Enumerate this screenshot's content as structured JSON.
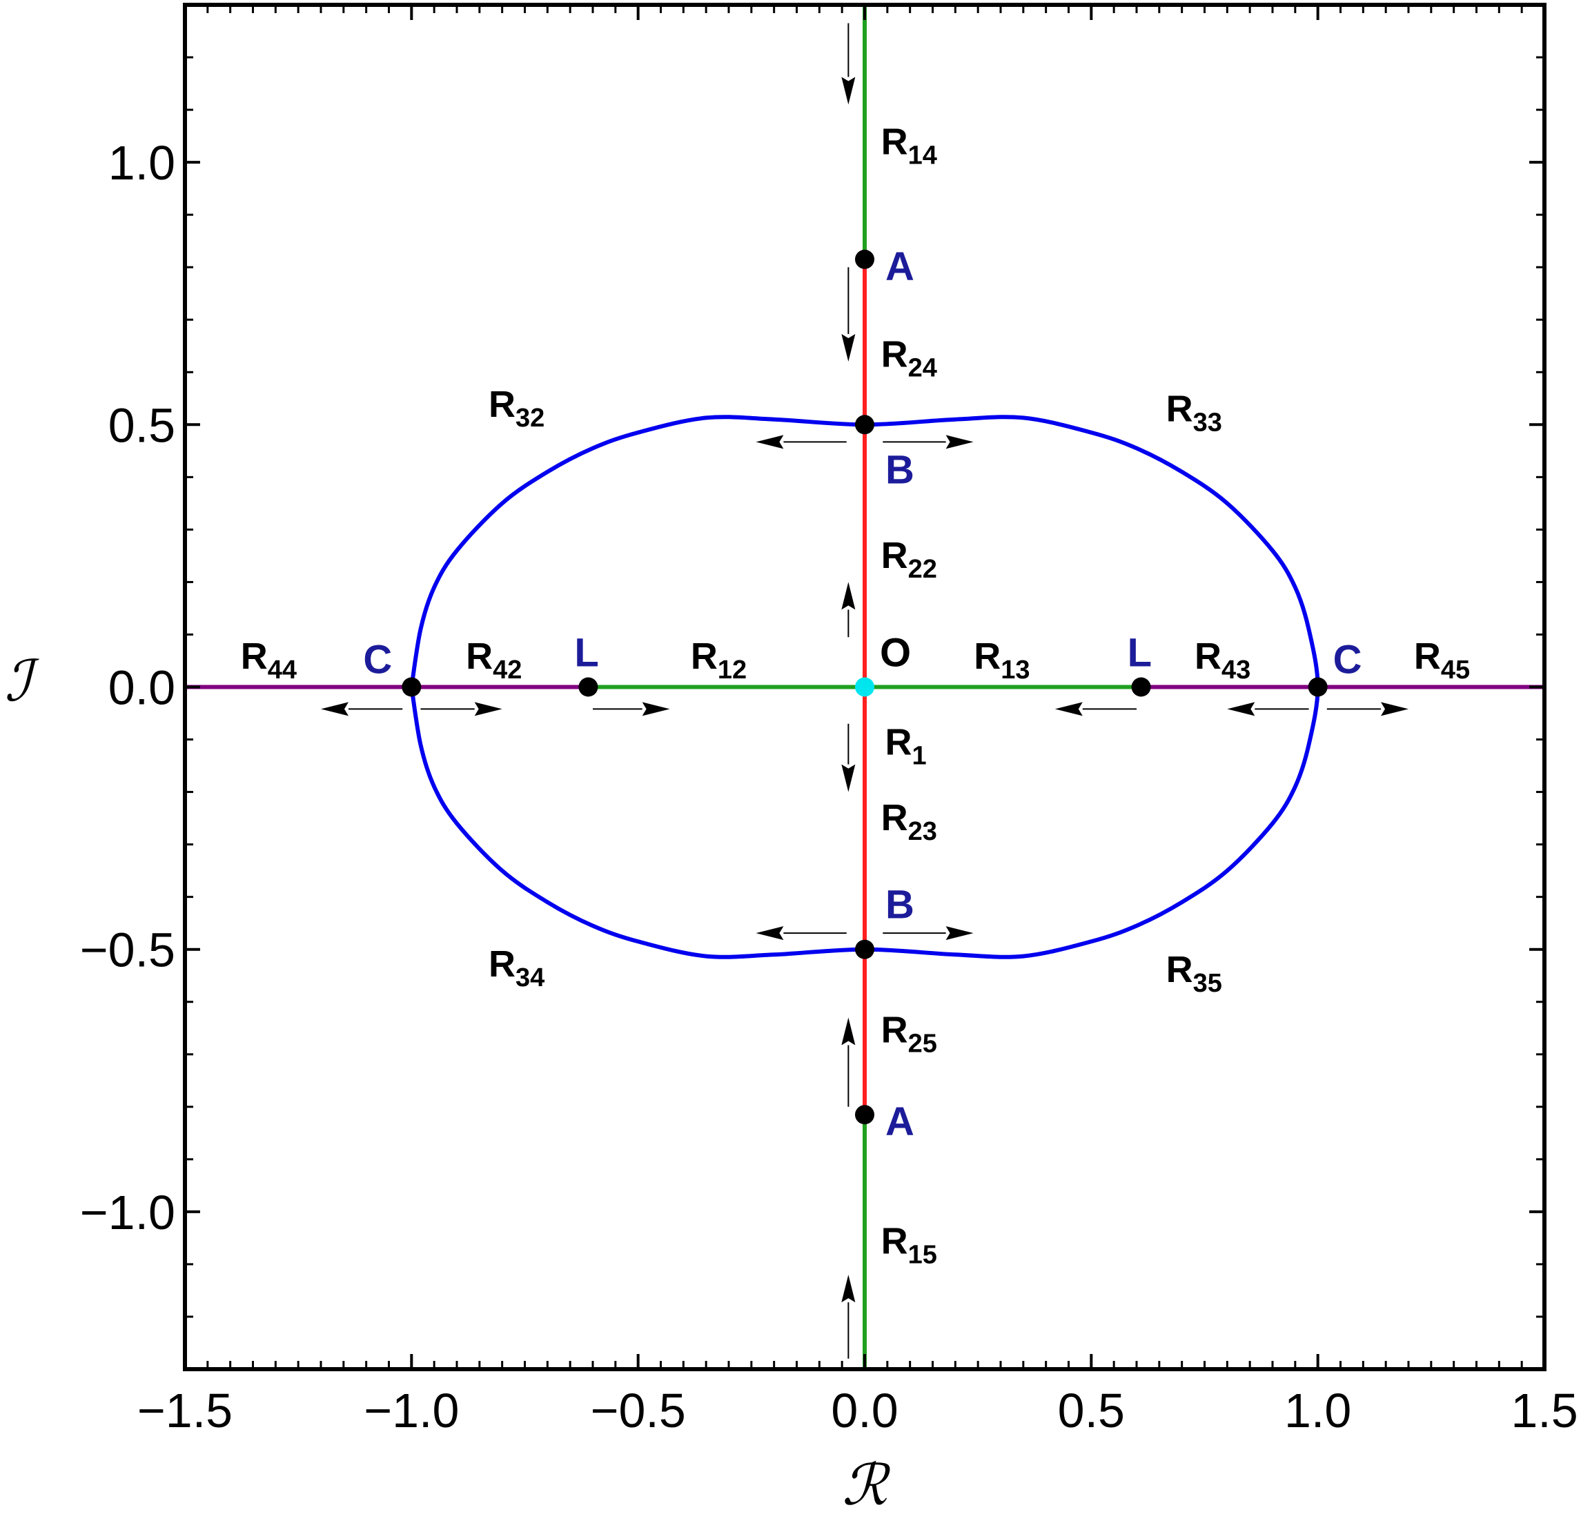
{
  "chart_data": {
    "type": "line",
    "xlabel": "ℛ",
    "ylabel": "ℐ",
    "xlim": [
      -1.5,
      1.5
    ],
    "ylim": [
      -1.3,
      1.3
    ],
    "xticks": [
      {
        "value": -1.5,
        "label": "−1.5"
      },
      {
        "value": -1,
        "label": "−1.0"
      },
      {
        "value": -0.5,
        "label": "−0.5"
      },
      {
        "value": 0,
        "label": "0.0"
      },
      0.5,
      {
        "value": 1,
        "label": "1.0"
      },
      1.5
    ],
    "yticks": [
      {
        "value": -1,
        "label": "−1.0"
      },
      {
        "value": -0.5,
        "label": "−0.5"
      },
      {
        "value": 0,
        "label": "0.0"
      },
      0.5,
      {
        "value": 1,
        "label": "1.0"
      }
    ],
    "series": [
      {
        "color": "#800080",
        "x": [
          -1.5,
          -0.61
        ],
        "values": [
          0,
          0
        ]
      },
      {
        "color": "#1fa01f",
        "x": [
          -0.61,
          0.61
        ],
        "values": [
          0,
          0
        ]
      },
      {
        "color": "#800080",
        "x": [
          0.61,
          1.5
        ],
        "values": [
          0,
          0
        ]
      },
      {
        "color": "#0000ee",
        "x": [
          -1,
          -0.98,
          -0.95,
          -0.9,
          -0.8,
          -0.7,
          -0.6,
          -0.5,
          -0.35,
          -0.2,
          0,
          0.2,
          0.35,
          0.5,
          0.6,
          0.7,
          0.8,
          0.9,
          0.95,
          0.98,
          1,
          0.98,
          0.95,
          0.9,
          0.8,
          0.7,
          0.6,
          0.5,
          0.35,
          0.2,
          0,
          -0.2,
          -0.35,
          -0.5,
          -0.6,
          -0.7,
          -0.8,
          -0.9,
          -0.95,
          -0.98,
          -1
        ],
        "values": [
          0,
          0.11,
          0.19,
          0.26,
          0.35,
          0.41,
          0.455,
          0.485,
          0.513,
          0.51,
          0.5,
          0.51,
          0.513,
          0.485,
          0.455,
          0.41,
          0.35,
          0.26,
          0.19,
          0.11,
          0,
          -0.11,
          -0.19,
          -0.26,
          -0.35,
          -0.41,
          -0.455,
          -0.485,
          -0.513,
          -0.51,
          -0.5,
          -0.51,
          -0.513,
          -0.485,
          -0.455,
          -0.41,
          -0.35,
          -0.26,
          -0.19,
          -0.11,
          0
        ]
      },
      {
        "color": "#1fa01f",
        "x": [
          0,
          0
        ],
        "values": [
          1.3,
          0.815
        ]
      },
      {
        "color": "#ff2020",
        "x": [
          0,
          0
        ],
        "values": [
          0.815,
          -0.815
        ]
      },
      {
        "color": "#1fa01f",
        "x": [
          0,
          0
        ],
        "values": [
          -0.815,
          -1.3
        ]
      }
    ],
    "points": [
      {
        "label": "A",
        "x": 0,
        "y": 0.815,
        "color": "#000000",
        "label_color": "#1c1c9a"
      },
      {
        "label": "B",
        "x": 0,
        "y": 0.5,
        "color": "#000000",
        "label_color": "#1c1c9a"
      },
      {
        "label": "C",
        "x": -1,
        "y": 0,
        "color": "#000000",
        "label_color": "#1c1c9a"
      },
      {
        "label": "L",
        "x": -0.61,
        "y": 0,
        "color": "#000000",
        "label_color": "#1c1c9a"
      },
      {
        "label": "O",
        "x": 0,
        "y": 0,
        "color": "#00e5ee",
        "label_color": "#000000"
      },
      {
        "label": "L",
        "x": 0.61,
        "y": 0,
        "color": "#000000",
        "label_color": "#1c1c9a"
      },
      {
        "label": "C",
        "x": 1,
        "y": 0,
        "color": "#000000",
        "label_color": "#1c1c9a"
      },
      {
        "label": "B",
        "x": 0,
        "y": -0.5,
        "color": "#000000",
        "label_color": "#1c1c9a"
      },
      {
        "label": "A",
        "x": 0,
        "y": -0.815,
        "color": "#000000",
        "label_color": "#1c1c9a"
      }
    ],
    "region_labels": [
      {
        "text": "R",
        "sub": "14"
      },
      {
        "text": "R",
        "sub": "24"
      },
      {
        "text": "R",
        "sub": "22"
      },
      {
        "text": "R",
        "sub": "1"
      },
      {
        "text": "R",
        "sub": "23"
      },
      {
        "text": "R",
        "sub": "25"
      },
      {
        "text": "R",
        "sub": "15"
      },
      {
        "text": "R",
        "sub": "32"
      },
      {
        "text": "R",
        "sub": "33"
      },
      {
        "text": "R",
        "sub": "34"
      },
      {
        "text": "R",
        "sub": "35"
      },
      {
        "text": "R",
        "sub": "44"
      },
      {
        "text": "R",
        "sub": "42"
      },
      {
        "text": "R",
        "sub": "12"
      },
      {
        "text": "R",
        "sub": "13"
      },
      {
        "text": "R",
        "sub": "43"
      },
      {
        "text": "R",
        "sub": "45"
      }
    ]
  }
}
